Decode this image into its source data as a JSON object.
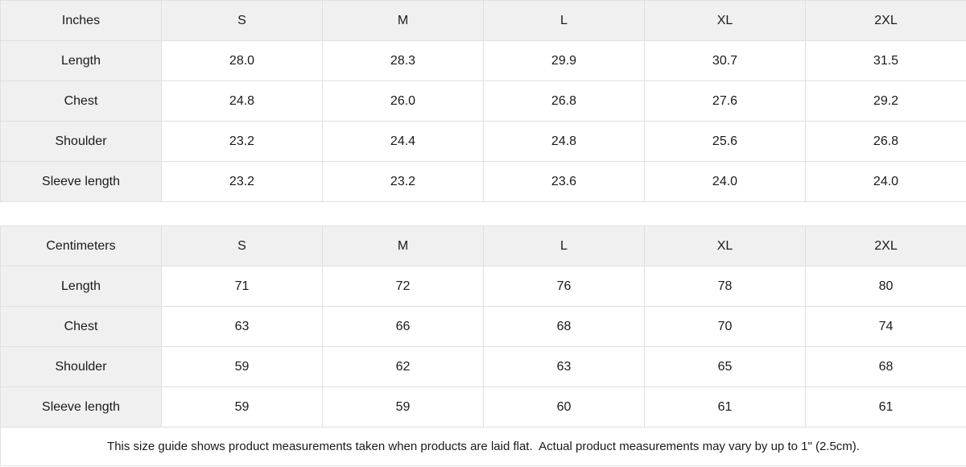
{
  "colors": {
    "header_background": "#f0f0f0",
    "label_background": "#f0f0f0",
    "cell_background": "#ffffff",
    "border": "#e0e0e0",
    "text": "#1a1a1a"
  },
  "tables": [
    {
      "unit": "inches",
      "header": [
        "Inches",
        "S",
        "M",
        "L",
        "XL",
        "2XL"
      ],
      "rows": [
        {
          "label": "Length",
          "values": [
            "28.0",
            "28.3",
            "29.9",
            "30.7",
            "31.5"
          ]
        },
        {
          "label": "Chest",
          "values": [
            "24.8",
            "26.0",
            "26.8",
            "27.6",
            "29.2"
          ]
        },
        {
          "label": "Shoulder",
          "values": [
            "23.2",
            "24.4",
            "24.8",
            "25.6",
            "26.8"
          ]
        },
        {
          "label": "Sleeve length",
          "values": [
            "23.2",
            "23.2",
            "23.6",
            "24.0",
            "24.0"
          ]
        }
      ]
    },
    {
      "unit": "centimeters",
      "header": [
        "Centimeters",
        "S",
        "M",
        "L",
        "XL",
        "2XL"
      ],
      "rows": [
        {
          "label": "Length",
          "values": [
            "71",
            "72",
            "76",
            "78",
            "80"
          ]
        },
        {
          "label": "Chest",
          "values": [
            "63",
            "66",
            "68",
            "70",
            "74"
          ]
        },
        {
          "label": "Shoulder",
          "values": [
            "59",
            "62",
            "63",
            "65",
            "68"
          ]
        },
        {
          "label": "Sleeve length",
          "values": [
            "59",
            "59",
            "60",
            "61",
            "61"
          ]
        }
      ]
    }
  ],
  "footer": {
    "note": "This size guide shows product measurements taken when products are laid flat.  Actual product measurements may vary by up to 1\" (2.5cm)."
  }
}
